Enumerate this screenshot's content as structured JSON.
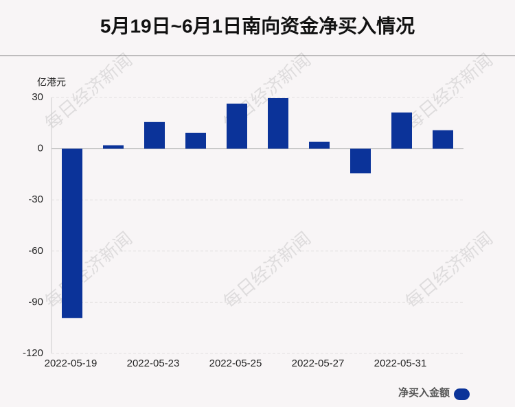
{
  "chart_data": {
    "type": "bar",
    "title": "5月19日~6月1日南向资金净买入情况",
    "y_label": "亿港元",
    "watermark": "每日经济新闻",
    "categories": [
      "2022-05-19",
      null,
      "2022-05-23",
      null,
      "2022-05-25",
      null,
      "2022-05-27",
      null,
      "2022-05-31",
      null
    ],
    "series": [
      {
        "name": "净买入金额",
        "color": "#0b3399",
        "values": [
          -99.2,
          2.0,
          15.6,
          9.2,
          26.4,
          29.6,
          4.0,
          -14.4,
          21.2,
          10.8
        ]
      }
    ],
    "ylim": [
      -120,
      30
    ],
    "yticks": [
      -120,
      -90,
      -60,
      -30,
      0,
      30
    ],
    "grid": true,
    "legend": "bottom-right"
  }
}
